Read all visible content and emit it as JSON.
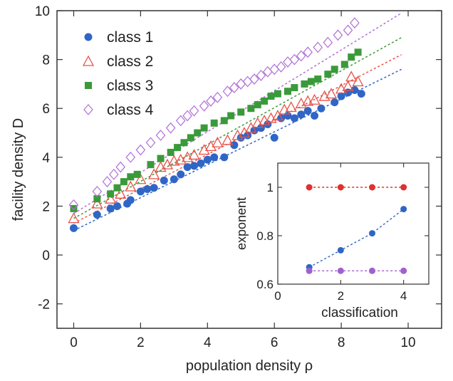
{
  "chart_data": [
    {
      "type": "scatter",
      "xlabel": "population density ρ",
      "ylabel": "facility density D",
      "xlim": [
        -0.5,
        11
      ],
      "ylim": [
        -3,
        10
      ],
      "xticks": [
        0,
        2,
        4,
        6,
        8,
        10
      ],
      "yticks": [
        -2,
        0,
        2,
        4,
        6,
        8,
        10
      ],
      "grid": false,
      "legend_position": "top-left",
      "series": [
        {
          "name": "class 1",
          "marker": "filled-circle",
          "color": "#2f66c6",
          "points": [
            [
              0.0,
              1.1
            ],
            [
              0.7,
              1.65
            ],
            [
              1.1,
              1.9
            ],
            [
              1.3,
              2.0
            ],
            [
              1.6,
              2.1
            ],
            [
              1.7,
              2.25
            ],
            [
              2.0,
              2.6
            ],
            [
              2.2,
              2.7
            ],
            [
              2.4,
              2.75
            ],
            [
              2.7,
              3.05
            ],
            [
              3.0,
              3.1
            ],
            [
              3.2,
              3.3
            ],
            [
              3.4,
              3.6
            ],
            [
              3.6,
              3.65
            ],
            [
              3.8,
              3.75
            ],
            [
              4.0,
              3.9
            ],
            [
              4.2,
              4.0
            ],
            [
              4.5,
              4.0
            ],
            [
              4.8,
              4.5
            ],
            [
              5.0,
              4.8
            ],
            [
              5.2,
              4.9
            ],
            [
              5.4,
              5.1
            ],
            [
              5.6,
              5.2
            ],
            [
              5.8,
              5.35
            ],
            [
              6.0,
              4.8
            ],
            [
              6.2,
              5.6
            ],
            [
              6.4,
              5.7
            ],
            [
              6.6,
              5.6
            ],
            [
              6.8,
              5.75
            ],
            [
              7.0,
              5.9
            ],
            [
              7.2,
              5.7
            ],
            [
              7.4,
              6.0
            ],
            [
              7.8,
              6.25
            ],
            [
              8.0,
              6.5
            ],
            [
              8.2,
              6.65
            ],
            [
              8.4,
              6.75
            ],
            [
              8.6,
              6.6
            ]
          ],
          "fit": {
            "x": [
              0,
              9.8
            ],
            "y": [
              1.0,
              7.6
            ]
          }
        },
        {
          "name": "class 2",
          "marker": "open-triangle",
          "color": "#e8534a",
          "points": [
            [
              0.0,
              1.5
            ],
            [
              0.7,
              2.1
            ],
            [
              1.1,
              2.3
            ],
            [
              1.4,
              2.5
            ],
            [
              1.7,
              2.8
            ],
            [
              2.0,
              3.1
            ],
            [
              2.4,
              3.3
            ],
            [
              2.6,
              3.6
            ],
            [
              2.8,
              3.7
            ],
            [
              3.0,
              3.85
            ],
            [
              3.2,
              3.9
            ],
            [
              3.4,
              4.0
            ],
            [
              3.6,
              4.1
            ],
            [
              3.9,
              4.3
            ],
            [
              4.1,
              4.45
            ],
            [
              4.3,
              4.6
            ],
            [
              4.6,
              4.7
            ],
            [
              4.9,
              4.9
            ],
            [
              5.1,
              5.0
            ],
            [
              5.3,
              5.2
            ],
            [
              5.5,
              5.4
            ],
            [
              5.7,
              5.5
            ],
            [
              5.9,
              5.6
            ],
            [
              6.1,
              5.7
            ],
            [
              6.3,
              5.95
            ],
            [
              6.5,
              6.05
            ],
            [
              6.8,
              6.2
            ],
            [
              7.0,
              6.3
            ],
            [
              7.2,
              6.35
            ],
            [
              7.5,
              6.5
            ],
            [
              7.7,
              6.6
            ],
            [
              8.0,
              6.8
            ],
            [
              8.2,
              6.9
            ],
            [
              8.3,
              7.3
            ],
            [
              8.5,
              7.1
            ]
          ],
          "fit": {
            "x": [
              0,
              9.8
            ],
            "y": [
              1.3,
              8.2
            ]
          }
        },
        {
          "name": "class 3",
          "marker": "filled-square",
          "color": "#3a9a3a",
          "points": [
            [
              0.0,
              1.9
            ],
            [
              0.7,
              2.3
            ],
            [
              1.1,
              2.5
            ],
            [
              1.3,
              2.75
            ],
            [
              1.5,
              3.0
            ],
            [
              1.7,
              3.2
            ],
            [
              1.9,
              3.3
            ],
            [
              2.3,
              3.7
            ],
            [
              2.6,
              3.95
            ],
            [
              2.9,
              4.2
            ],
            [
              3.1,
              4.4
            ],
            [
              3.3,
              4.6
            ],
            [
              3.5,
              4.8
            ],
            [
              3.7,
              5.0
            ],
            [
              3.9,
              5.2
            ],
            [
              4.2,
              5.4
            ],
            [
              4.5,
              5.5
            ],
            [
              4.7,
              5.7
            ],
            [
              5.0,
              5.85
            ],
            [
              5.3,
              6.0
            ],
            [
              5.5,
              6.15
            ],
            [
              5.7,
              6.3
            ],
            [
              5.9,
              6.5
            ],
            [
              6.1,
              6.6
            ],
            [
              6.4,
              6.7
            ],
            [
              6.6,
              6.85
            ],
            [
              6.9,
              7.0
            ],
            [
              7.1,
              7.1
            ],
            [
              7.3,
              7.2
            ],
            [
              7.6,
              7.4
            ],
            [
              7.8,
              7.6
            ],
            [
              8.1,
              7.8
            ],
            [
              8.3,
              8.1
            ],
            [
              8.5,
              8.3
            ]
          ],
          "fit": {
            "x": [
              0,
              9.8
            ],
            "y": [
              1.5,
              8.9
            ]
          }
        },
        {
          "name": "class 4",
          "marker": "open-diamond",
          "color": "#b070d8",
          "points": [
            [
              0.0,
              2.05
            ],
            [
              0.7,
              2.6
            ],
            [
              1.0,
              3.0
            ],
            [
              1.2,
              3.3
            ],
            [
              1.4,
              3.6
            ],
            [
              1.7,
              4.0
            ],
            [
              2.0,
              4.3
            ],
            [
              2.3,
              4.6
            ],
            [
              2.6,
              4.9
            ],
            [
              2.9,
              5.2
            ],
            [
              3.2,
              5.5
            ],
            [
              3.4,
              5.7
            ],
            [
              3.6,
              5.9
            ],
            [
              3.9,
              6.1
            ],
            [
              4.1,
              6.3
            ],
            [
              4.3,
              6.45
            ],
            [
              4.6,
              6.7
            ],
            [
              4.8,
              6.85
            ],
            [
              5.0,
              7.0
            ],
            [
              5.2,
              7.1
            ],
            [
              5.4,
              7.2
            ],
            [
              5.6,
              7.35
            ],
            [
              5.8,
              7.5
            ],
            [
              6.0,
              7.6
            ],
            [
              6.2,
              7.7
            ],
            [
              6.4,
              7.9
            ],
            [
              6.6,
              8.0
            ],
            [
              6.8,
              8.15
            ],
            [
              7.0,
              8.3
            ],
            [
              7.3,
              8.5
            ],
            [
              7.6,
              8.7
            ],
            [
              7.9,
              9.0
            ],
            [
              8.2,
              9.2
            ],
            [
              8.4,
              9.5
            ]
          ],
          "fit": {
            "x": [
              0,
              9.8
            ],
            "y": [
              1.7,
              9.9
            ]
          }
        }
      ]
    },
    {
      "type": "line",
      "xlabel": "classification",
      "ylabel": "exponent",
      "xlim": [
        0,
        4.8
      ],
      "ylim": [
        0.6,
        1.1
      ],
      "xticks": [
        0,
        2,
        4
      ],
      "yticks": [
        0.6,
        0.8,
        1
      ],
      "grid": false,
      "series": [
        {
          "color": "#e03030",
          "x": [
            1,
            2,
            3,
            4
          ],
          "y": [
            1.0,
            1.0,
            1.0,
            1.0
          ]
        },
        {
          "color": "#2f66c6",
          "x": [
            1,
            2,
            3,
            4
          ],
          "y": [
            0.67,
            0.74,
            0.81,
            0.91
          ]
        },
        {
          "color": "#a060d0",
          "x": [
            1,
            2,
            3,
            4
          ],
          "y": [
            0.655,
            0.655,
            0.655,
            0.655
          ]
        }
      ]
    }
  ]
}
